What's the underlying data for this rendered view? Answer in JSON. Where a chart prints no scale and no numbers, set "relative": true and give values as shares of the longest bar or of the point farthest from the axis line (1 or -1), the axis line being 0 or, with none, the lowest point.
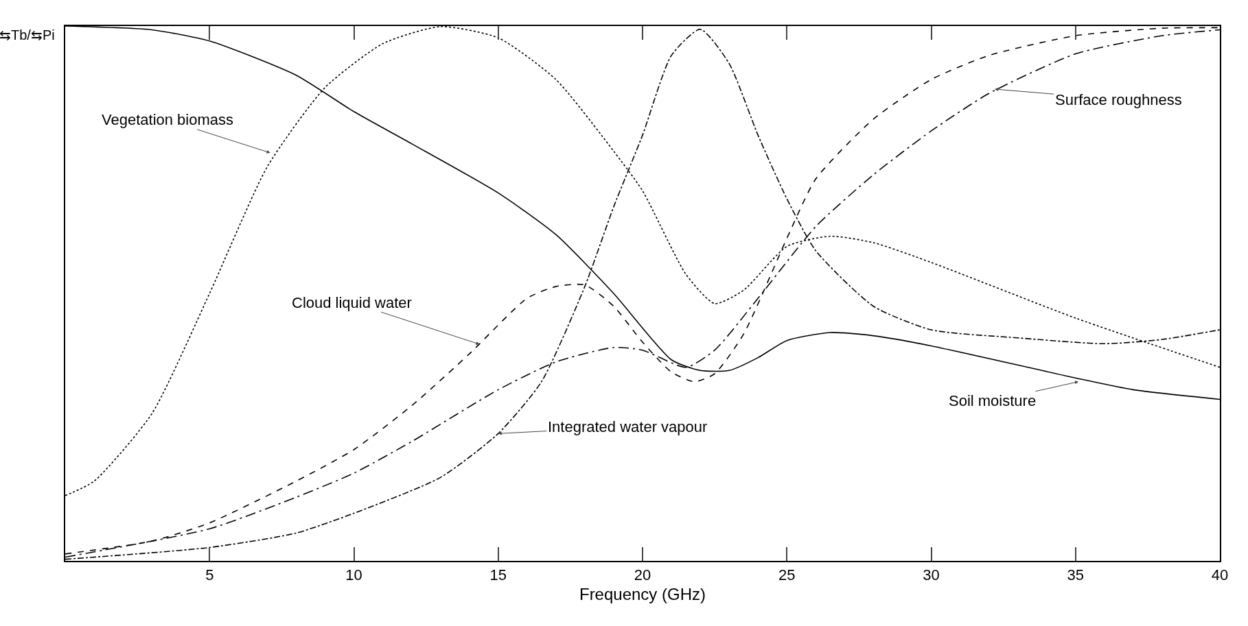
{
  "chart_data": {
    "type": "line",
    "relative": true,
    "xlabel": "Frequency (GHz)",
    "ylabel": "⇆Tb/⇆Pi",
    "xlim": [
      0,
      40
    ],
    "xticks": [
      5,
      10,
      15,
      20,
      25,
      30,
      35,
      40
    ],
    "grid": false,
    "marker": "none",
    "series": [
      {
        "color": "#000000",
        "line_style": "solid",
        "x": [
          0,
          3,
          5,
          8,
          10,
          12,
          15,
          17,
          19,
          21,
          22,
          23,
          24,
          25,
          26.5,
          28,
          30,
          35,
          37,
          40
        ],
        "values": [
          1.0,
          0.993,
          0.972,
          0.908,
          0.84,
          0.78,
          0.688,
          0.61,
          0.5,
          0.376,
          0.356,
          0.356,
          0.38,
          0.412,
          0.427,
          0.421,
          0.402,
          0.342,
          0.32,
          0.302
        ]
      },
      {
        "color": "#000000",
        "line_style": "dotted",
        "x": [
          0,
          1,
          3,
          5,
          7,
          9,
          11,
          13,
          15,
          17,
          19,
          20,
          21.5,
          22.5,
          23.5,
          25,
          26.5,
          28,
          30,
          35,
          40
        ],
        "values": [
          0.122,
          0.149,
          0.275,
          0.5,
          0.737,
          0.885,
          0.967,
          0.999,
          0.978,
          0.9,
          0.766,
          0.692,
          0.536,
          0.481,
          0.506,
          0.588,
          0.607,
          0.595,
          0.558,
          0.454,
          0.362
        ]
      },
      {
        "color": "#000000",
        "line_style": "dashdot",
        "x": [
          0,
          5,
          8,
          10,
          13,
          15,
          16.5,
          18,
          19,
          20,
          21,
          22,
          23,
          24,
          25,
          26,
          28,
          30,
          33,
          36,
          38,
          40
        ],
        "values": [
          0.003,
          0.025,
          0.052,
          0.089,
          0.156,
          0.238,
          0.335,
          0.513,
          0.662,
          0.796,
          0.945,
          0.994,
          0.93,
          0.796,
          0.677,
          0.58,
          0.476,
          0.432,
          0.417,
          0.406,
          0.414,
          0.432
        ]
      },
      {
        "color": "#000000",
        "line_style": "dashed",
        "x": [
          0,
          3,
          5,
          8,
          10,
          12,
          14,
          16,
          17,
          18,
          19,
          20,
          21,
          21.8,
          22.5,
          23.5,
          25,
          26,
          28,
          30,
          32,
          35,
          38,
          40
        ],
        "values": [
          0.013,
          0.037,
          0.071,
          0.149,
          0.208,
          0.29,
          0.387,
          0.491,
          0.513,
          0.516,
          0.476,
          0.409,
          0.353,
          0.335,
          0.35,
          0.424,
          0.603,
          0.714,
          0.826,
          0.9,
          0.945,
          0.982,
          0.996,
          0.997
        ]
      },
      {
        "color": "#000000",
        "line_style": "longdashdot",
        "x": [
          0,
          5,
          8,
          10,
          12,
          15,
          17,
          19,
          20,
          21.5,
          22.5,
          24,
          26,
          28,
          30,
          32,
          35,
          38,
          40
        ],
        "values": [
          0.007,
          0.06,
          0.119,
          0.164,
          0.223,
          0.32,
          0.372,
          0.399,
          0.394,
          0.362,
          0.394,
          0.491,
          0.625,
          0.722,
          0.804,
          0.874,
          0.948,
          0.982,
          0.993
        ]
      }
    ],
    "annotations": [
      {
        "text": "Vegetation biomass",
        "x": 7.1,
        "y": 0.763
      },
      {
        "text": "Cloud liquid water",
        "x": 14.35,
        "y": 0.405
      },
      {
        "text": "Integrated water vapour",
        "x": 15,
        "y": 0.238
      },
      {
        "text": "Soil moisture",
        "x": 35.1,
        "y": 0.335
      },
      {
        "text": "Surface roughness",
        "x": 32.2,
        "y": 0.882
      }
    ]
  }
}
